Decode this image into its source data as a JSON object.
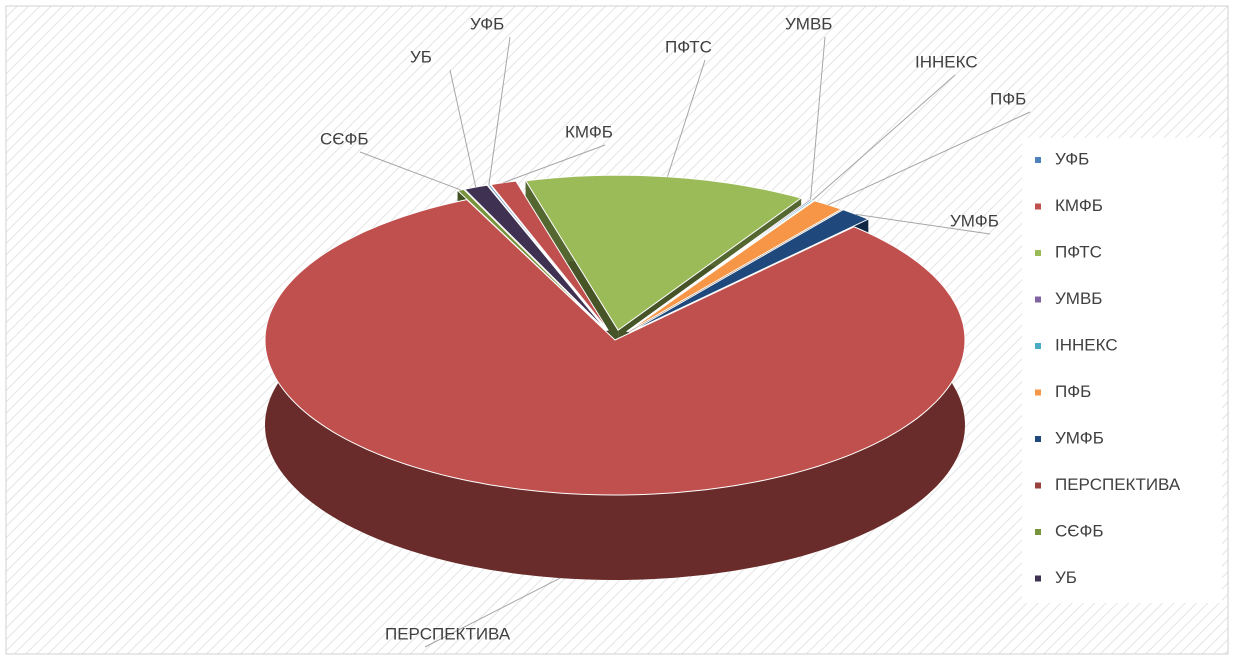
{
  "chart_data": {
    "type": "pie",
    "categories": [
      "УФБ",
      "КМФБ",
      "ПФТС",
      "УМВБ",
      "ІННЕКС",
      "ПФБ",
      "УМФБ",
      "ПЕРСПЕКТИВА",
      "СЄФБ",
      "УБ"
    ],
    "values": [
      0.1,
      1.2,
      13,
      0.1,
      0.1,
      1.5,
      1.5,
      81,
      0.3,
      1.1
    ],
    "colors": [
      "#4f81bd",
      "#c0504d",
      "#9bbb59",
      "#8064a2",
      "#4bacc6",
      "#f79646",
      "#1f497d",
      "#c0504d",
      "#77933c",
      "#3f3151"
    ],
    "legend": "right"
  }
}
